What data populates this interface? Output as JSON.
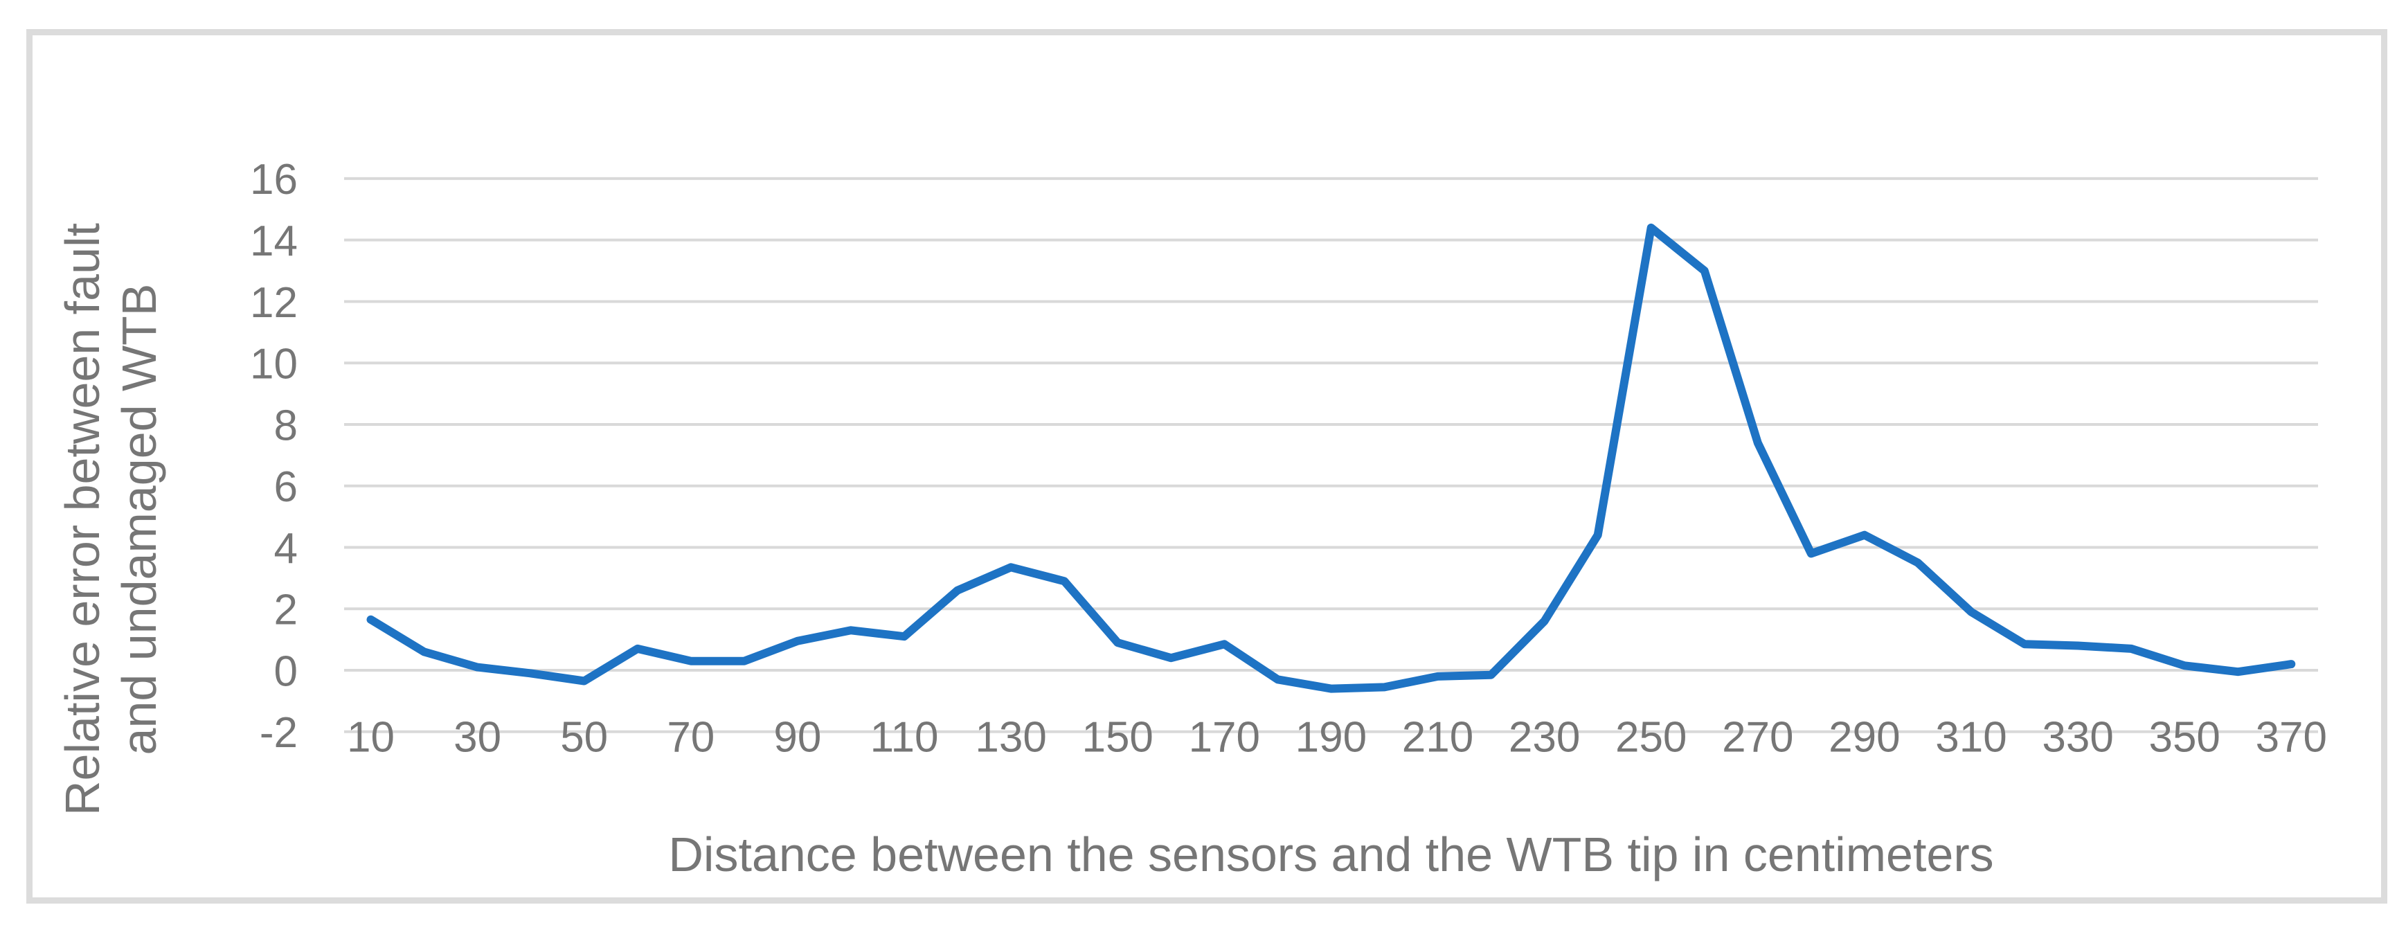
{
  "chart_data": {
    "type": "line",
    "title": "",
    "xlabel": "Distance between the sensors and the WTB tip in centimeters",
    "ylabel_line1": "Relative error between fault",
    "ylabel_line2": "and undamaged WTB",
    "x": [
      10,
      20,
      30,
      40,
      50,
      60,
      70,
      80,
      90,
      100,
      110,
      120,
      130,
      140,
      150,
      160,
      170,
      180,
      190,
      200,
      210,
      220,
      230,
      240,
      250,
      260,
      270,
      280,
      290,
      300,
      310,
      320,
      330,
      340,
      350,
      360,
      370
    ],
    "values": [
      1.65,
      0.6,
      0.1,
      -0.1,
      -0.35,
      0.7,
      0.3,
      0.3,
      0.95,
      1.3,
      1.1,
      2.6,
      3.35,
      2.9,
      0.9,
      0.4,
      0.85,
      -0.3,
      -0.6,
      -0.55,
      -0.2,
      -0.15,
      1.6,
      4.4,
      14.4,
      13.0,
      7.4,
      3.8,
      4.4,
      3.5,
      1.9,
      0.85,
      0.8,
      0.7,
      0.15,
      -0.05,
      0.2
    ],
    "series_name": "Relative error",
    "xlim": [
      10,
      370
    ],
    "ylim": [
      -2,
      16
    ],
    "y_ticks": [
      16,
      14,
      12,
      10,
      8,
      6,
      4,
      2,
      0,
      -2
    ],
    "y_tick_labels": [
      "16",
      "14",
      "12",
      "10",
      "8",
      "6",
      "4",
      "2",
      "0",
      "-2"
    ],
    "x_ticks": [
      10,
      30,
      50,
      70,
      90,
      110,
      130,
      150,
      170,
      190,
      210,
      230,
      250,
      270,
      290,
      310,
      330,
      350,
      370
    ],
    "x_tick_labels": [
      "10",
      "30",
      "50",
      "70",
      "90",
      "110",
      "130",
      "150",
      "170",
      "190",
      "210",
      "230",
      "250",
      "270",
      "290",
      "310",
      "330",
      "350",
      "370"
    ],
    "grid": true,
    "legend": false,
    "line_color": "#1E73C4",
    "gridline_color": "#D9D9D9",
    "text_color": "#767676",
    "border_color": "#DCDCDC",
    "background_color": "#FFFFFF"
  }
}
